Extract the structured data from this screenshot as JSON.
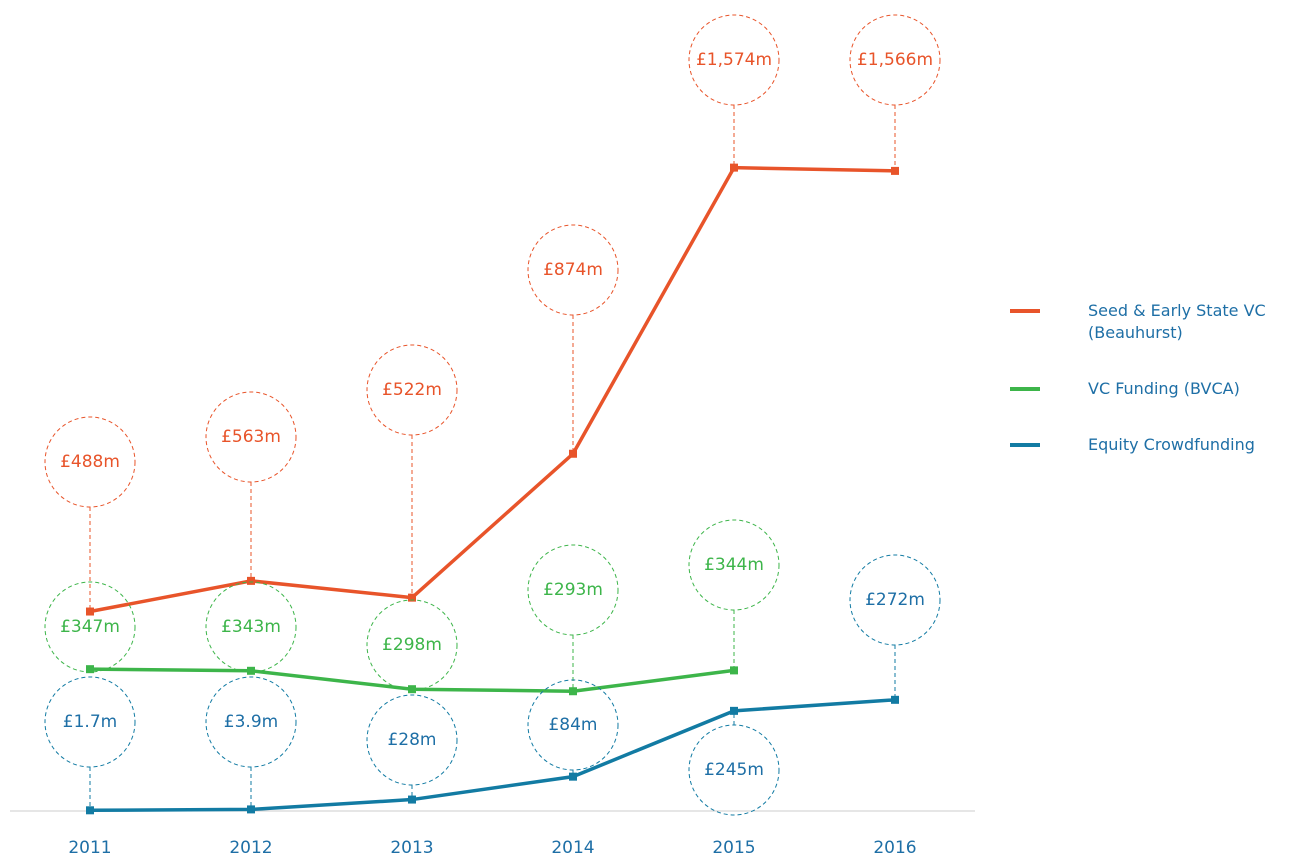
{
  "chart_data": {
    "type": "line",
    "categories": [
      "2011",
      "2012",
      "2013",
      "2014",
      "2015",
      "2016"
    ],
    "ylim": [
      0,
      1600
    ],
    "series": [
      {
        "name": "Seed & Early State VC (Beauhurst)",
        "color": "#e8542a",
        "values": [
          488,
          563,
          522,
          874,
          1574,
          1566
        ],
        "value_labels": [
          "£488m",
          "£563m",
          "£522m",
          "£874m",
          "£1,574m",
          "£1,566m"
        ]
      },
      {
        "name": "VC Funding (BVCA)",
        "color": "#3db54a",
        "values": [
          347,
          343,
          298,
          293,
          344,
          null
        ],
        "value_labels": [
          "£347m",
          "£343m",
          "£298m",
          "£293m",
          "£344m",
          null
        ]
      },
      {
        "name": "Equity Crowdfunding",
        "color": "#127ba3",
        "values": [
          1.7,
          3.9,
          28,
          84,
          245,
          272
        ],
        "value_labels": [
          "£1.7m",
          "£3.9m",
          "£28m",
          "£84m",
          "£245m",
          "£272m"
        ]
      }
    ],
    "legend": "right"
  }
}
